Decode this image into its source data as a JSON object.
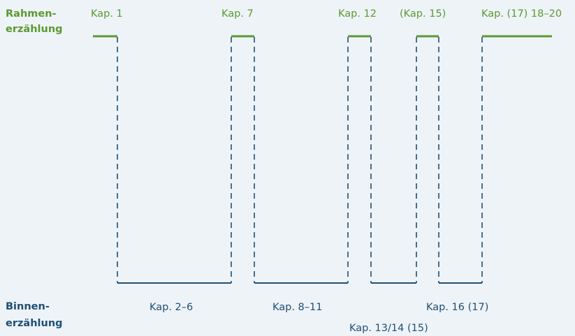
{
  "colors": {
    "frame": "#5b9a2f",
    "inner": "#1f4f74",
    "background": "#eef3f8"
  },
  "frame_label": {
    "line1": "Rahmen-",
    "line2": "erzählung"
  },
  "inner_label": {
    "line1": "Binnen-",
    "line2": "erzählung"
  },
  "frame_segments": [
    {
      "label": "Kap. 1"
    },
    {
      "label": "Kap. 7"
    },
    {
      "label": "Kap. 12"
    },
    {
      "label": "(Kap. 15)"
    },
    {
      "label": "Kap. (17) 18–20"
    }
  ],
  "inner_segments": [
    {
      "label": "Kap. 2–6"
    },
    {
      "label": "Kap. 8–11"
    },
    {
      "label": "Kap. 13/14 (15)"
    },
    {
      "label": "Kap. 16 (17)"
    }
  ]
}
